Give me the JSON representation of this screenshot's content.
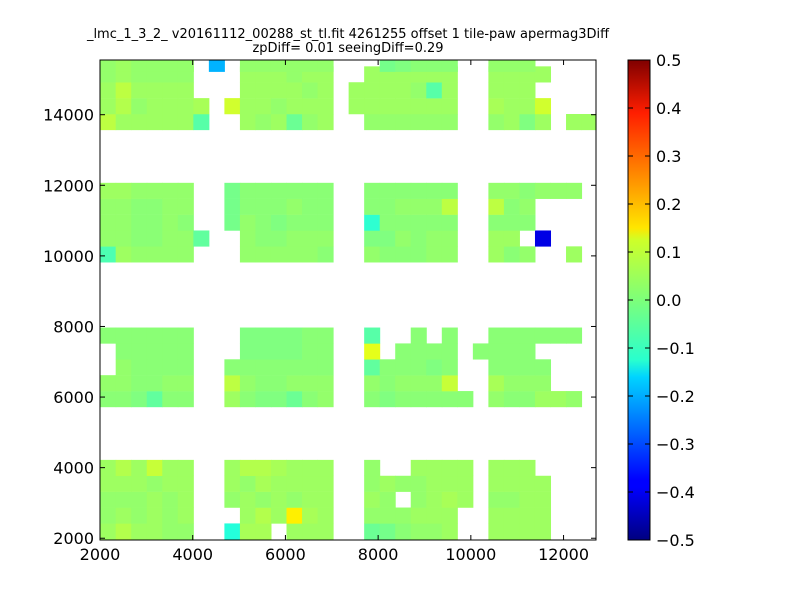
{
  "chart_data": {
    "type": "heatmap",
    "title_line1": "_lmc_1_3_2_ v20161112_00288_st_tl.fit 4261255 offset 1 tile-paw apermag3Diff",
    "title_line2": "zpDiff= 0.01 seeingDiff=0.29",
    "xlabel": "",
    "ylabel": "",
    "xlim": [
      2000,
      12700
    ],
    "ylim": [
      1950,
      15550
    ],
    "xticks": [
      2000,
      4000,
      6000,
      8000,
      10000,
      12000
    ],
    "yticks": [
      2000,
      4000,
      6000,
      8000,
      10000,
      12000,
      14000
    ],
    "colorbar": {
      "colormap": "jet",
      "vmin": -0.5,
      "vmax": 0.5,
      "ticks": [
        "0.5",
        "0.4",
        "0.3",
        "0.2",
        "0.1",
        "0.0",
        "−0.1",
        "−0.2",
        "−0.3",
        "−0.4",
        "−0.5"
      ]
    },
    "cell_width": 333,
    "cell_height": 440,
    "x_centers": [
      2170,
      2505,
      2840,
      3175,
      3510,
      3845,
      4180,
      4515,
      4850,
      5185,
      5520,
      5855,
      6190,
      6525,
      6860,
      7195,
      7530,
      7865,
      8200,
      8535,
      8870,
      9205,
      9540,
      9875,
      10210,
      10545,
      10880,
      11215,
      11550,
      11885,
      12220,
      12555
    ],
    "y_rows": [
      {
        "y": 2200,
        "cells": "aaaaaaA...N..aba..AA..aAAAAA.A..AAAAA......"
      },
      {
        "y": 2650,
        "cells": "AaaaaA....aAAcAA..bAAAAAa..AAAA.."
      },
      {
        "y": 3100,
        "cells": "AAaaaa....AaaA..AAAA..AaAa..AAAA.."
      },
      {
        "y": 3550,
        "cells": "AaaaAA...AAaaA..AAAAaA..AAAA.."
      },
      {
        "y": 4000,
        "cells": "AbAbAa..AbbaaA..A..AAAAA..AAAA.."
      }
    ],
    "grid": [
      [
        2170,
        2200,
        0.02
      ],
      [
        2505,
        2200,
        0.04
      ],
      [
        2840,
        2200,
        0.02
      ],
      [
        3175,
        2200,
        0.03
      ],
      [
        3510,
        2200,
        0.02
      ],
      [
        3845,
        2200,
        0.02
      ],
      [
        4850,
        2200,
        -0.08
      ],
      [
        5185,
        2200,
        0.02
      ],
      [
        5520,
        2200,
        0.01
      ],
      [
        6525,
        2200,
        0.02
      ],
      [
        6860,
        2200,
        0.02
      ],
      [
        7865,
        2200,
        -0.03
      ],
      [
        8200,
        2200,
        0.0
      ],
      [
        8535,
        2200,
        0.0
      ],
      [
        8870,
        2200,
        0.01
      ],
      [
        9205,
        2200,
        0.01
      ],
      [
        9540,
        2200,
        0.02
      ],
      [
        9875,
        2200,
        0.01
      ],
      [
        10880,
        2200,
        0.02
      ],
      [
        11215,
        2200,
        0.02
      ],
      [
        11550,
        2200,
        0.02
      ]
    ]
  }
}
